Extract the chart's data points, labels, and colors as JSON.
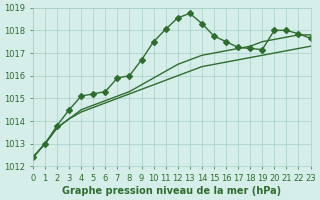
{
  "xlabel": "Graphe pression niveau de la mer (hPa)",
  "xlim": [
    0,
    23
  ],
  "ylim": [
    1012,
    1019
  ],
  "yticks": [
    1012,
    1013,
    1014,
    1015,
    1016,
    1017,
    1018,
    1019
  ],
  "xticks": [
    0,
    1,
    2,
    3,
    4,
    5,
    6,
    7,
    8,
    9,
    10,
    11,
    12,
    13,
    14,
    15,
    16,
    17,
    18,
    19,
    20,
    21,
    22,
    23
  ],
  "background_color": "#d6eeea",
  "grid_color": "#a8cfc8",
  "line_color": "#2d6e2d",
  "line1_x": [
    0,
    1,
    2,
    3,
    4,
    5,
    6,
    7,
    8,
    9,
    10,
    11,
    12,
    13,
    14,
    15,
    16,
    17,
    18,
    19,
    20,
    21,
    22,
    23
  ],
  "line1_y": [
    1012.4,
    1013.0,
    1013.7,
    1014.1,
    1014.4,
    1014.6,
    1014.8,
    1015.0,
    1015.2,
    1015.4,
    1015.6,
    1015.8,
    1016.0,
    1016.2,
    1016.4,
    1016.5,
    1016.6,
    1016.7,
    1016.8,
    1016.9,
    1017.0,
    1017.1,
    1017.2,
    1017.3
  ],
  "line2_x": [
    0,
    1,
    2,
    3,
    4,
    5,
    6,
    7,
    8,
    9,
    10,
    11,
    12,
    13,
    14,
    15,
    16,
    17,
    18,
    19,
    20,
    21,
    22,
    23
  ],
  "line2_y": [
    1012.4,
    1013.0,
    1013.7,
    1014.1,
    1014.5,
    1014.7,
    1014.9,
    1015.1,
    1015.3,
    1015.6,
    1015.9,
    1016.2,
    1016.5,
    1016.7,
    1016.9,
    1017.0,
    1017.1,
    1017.2,
    1017.3,
    1017.5,
    1017.6,
    1017.7,
    1017.8,
    1017.8
  ],
  "line3_x": [
    0,
    1,
    2,
    3,
    4,
    5,
    6,
    7,
    8,
    9,
    10,
    11,
    12,
    13,
    14,
    15,
    16,
    17,
    18,
    19,
    20,
    21,
    22,
    23
  ],
  "line3_y": [
    1012.4,
    1013.0,
    1013.8,
    1014.5,
    1015.1,
    1015.2,
    1015.3,
    1015.9,
    1016.0,
    1016.7,
    1017.5,
    1018.05,
    1018.55,
    1018.75,
    1018.3,
    1017.75,
    1017.5,
    1017.25,
    1017.2,
    1017.15,
    1018.0,
    1018.0,
    1017.85,
    1017.65
  ],
  "marker": "D",
  "markersize": 3,
  "linewidth": 1.0,
  "tick_fontsize": 6,
  "xlabel_fontsize": 7,
  "text_color": "#2d6e2d"
}
